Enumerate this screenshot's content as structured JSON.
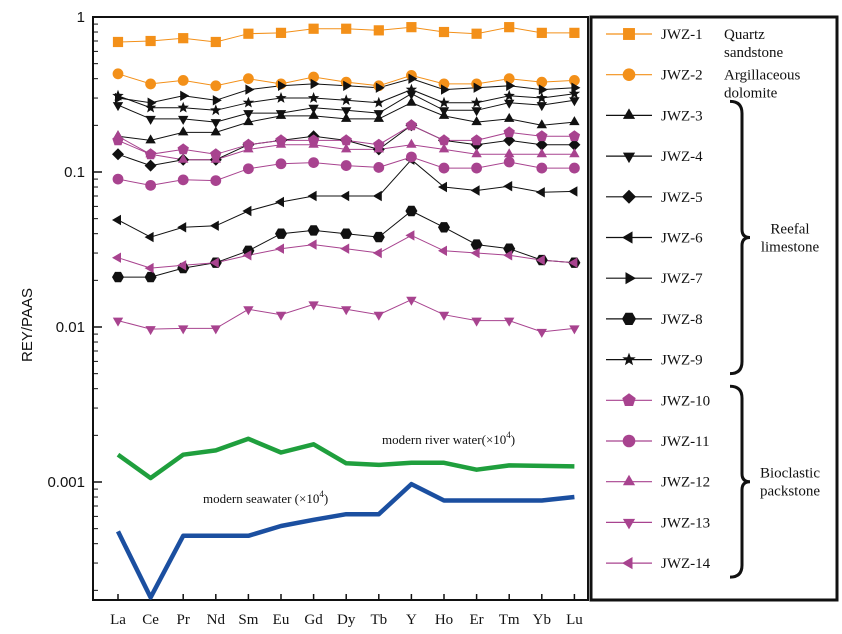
{
  "chart_data": {
    "type": "line",
    "ylabel": "REY/PAAS",
    "yscale": "log",
    "ylim": [
      0.00015,
      1
    ],
    "y_ticks": [
      {
        "value": 1,
        "label": "1"
      },
      {
        "value": 0.1,
        "label": "0.1"
      },
      {
        "value": 0.01,
        "label": "0.01"
      },
      {
        "value": 0.001,
        "label": "0.001"
      }
    ],
    "categories": [
      "La",
      "Ce",
      "Pr",
      "Nd",
      "Sm",
      "Eu",
      "Gd",
      "Dy",
      "Tb",
      "Y",
      "Ho",
      "Er",
      "Tm",
      "Yb",
      "Lu"
    ],
    "series": [
      {
        "name": "JWZ-1",
        "note": "Quartz sandstone",
        "marker": "square",
        "color": "#F39019",
        "line_color": "#F39019",
        "values": [
          0.69,
          0.7,
          0.73,
          0.69,
          0.78,
          0.79,
          0.84,
          0.84,
          0.82,
          0.86,
          0.8,
          0.78,
          0.86,
          0.79,
          0.79
        ]
      },
      {
        "name": "JWZ-2",
        "note": "Argillaceous dolomite",
        "marker": "circle",
        "color": "#F39019",
        "line_color": "#F39019",
        "values": [
          0.43,
          0.37,
          0.39,
          0.36,
          0.4,
          0.37,
          0.41,
          0.38,
          0.36,
          0.42,
          0.37,
          0.37,
          0.4,
          0.38,
          0.39
        ]
      },
      {
        "name": "JWZ-3",
        "marker": "triangle-up",
        "color": "#111111",
        "line_color": "#111111",
        "values": [
          0.17,
          0.16,
          0.18,
          0.18,
          0.21,
          0.23,
          0.23,
          0.22,
          0.22,
          0.28,
          0.23,
          0.21,
          0.22,
          0.2,
          0.21
        ]
      },
      {
        "name": "JWZ-4",
        "marker": "triangle-down",
        "color": "#111111",
        "line_color": "#111111",
        "values": [
          0.27,
          0.22,
          0.22,
          0.21,
          0.24,
          0.24,
          0.26,
          0.25,
          0.24,
          0.32,
          0.25,
          0.25,
          0.28,
          0.27,
          0.29
        ]
      },
      {
        "name": "JWZ-5",
        "marker": "diamond",
        "color": "#111111",
        "line_color": "#111111",
        "values": [
          0.13,
          0.11,
          0.12,
          0.12,
          0.15,
          0.16,
          0.17,
          0.16,
          0.14,
          0.2,
          0.16,
          0.15,
          0.16,
          0.15,
          0.15
        ]
      },
      {
        "name": "JWZ-6",
        "marker": "triangle-left",
        "color": "#111111",
        "line_color": "#111111",
        "values": [
          0.049,
          0.038,
          0.044,
          0.045,
          0.056,
          0.064,
          0.07,
          0.07,
          0.07,
          0.12,
          0.08,
          0.076,
          0.081,
          0.074,
          0.075
        ]
      },
      {
        "name": "JWZ-7",
        "marker": "triangle-right",
        "color": "#111111",
        "line_color": "#111111",
        "values": [
          0.3,
          0.28,
          0.31,
          0.29,
          0.34,
          0.36,
          0.37,
          0.36,
          0.35,
          0.4,
          0.34,
          0.35,
          0.36,
          0.34,
          0.35
        ]
      },
      {
        "name": "JWZ-8",
        "marker": "hexagon",
        "color": "#111111",
        "line_color": "#111111",
        "values": [
          0.021,
          0.021,
          0.024,
          0.026,
          0.031,
          0.04,
          0.042,
          0.04,
          0.038,
          0.056,
          0.044,
          0.034,
          0.032,
          0.027,
          0.026
        ]
      },
      {
        "name": "JWZ-9",
        "marker": "star",
        "color": "#111111",
        "line_color": "#111111",
        "values": [
          0.31,
          0.26,
          0.26,
          0.25,
          0.28,
          0.3,
          0.3,
          0.29,
          0.28,
          0.34,
          0.28,
          0.28,
          0.31,
          0.3,
          0.32
        ]
      },
      {
        "name": "JWZ-10",
        "marker": "pentagon",
        "color": "#A8438F",
        "line_color": "#A8438F",
        "values": [
          0.16,
          0.13,
          0.14,
          0.13,
          0.15,
          0.16,
          0.16,
          0.16,
          0.15,
          0.2,
          0.16,
          0.16,
          0.18,
          0.17,
          0.17
        ]
      },
      {
        "name": "JWZ-11",
        "marker": "circle",
        "color": "#A8438F",
        "line_color": "#A8438F",
        "values": [
          0.09,
          0.082,
          0.089,
          0.088,
          0.105,
          0.113,
          0.115,
          0.11,
          0.107,
          0.125,
          0.106,
          0.106,
          0.116,
          0.106,
          0.106
        ]
      },
      {
        "name": "JWZ-12",
        "marker": "triangle-up",
        "color": "#A8438F",
        "line_color": "#A8438F",
        "values": [
          0.17,
          0.13,
          0.12,
          0.12,
          0.14,
          0.15,
          0.15,
          0.14,
          0.14,
          0.15,
          0.14,
          0.13,
          0.13,
          0.13,
          0.13
        ]
      },
      {
        "name": "JWZ-13",
        "marker": "triangle-down",
        "color": "#A8438F",
        "line_color": "#A8438F",
        "values": [
          0.011,
          0.0097,
          0.0098,
          0.0098,
          0.013,
          0.012,
          0.014,
          0.013,
          0.012,
          0.015,
          0.012,
          0.011,
          0.011,
          0.0093,
          0.0098
        ]
      },
      {
        "name": "JWZ-14",
        "marker": "triangle-left",
        "color": "#A8438F",
        "line_color": "#A8438F",
        "values": [
          0.028,
          0.024,
          0.025,
          0.026,
          0.029,
          0.032,
          0.034,
          0.032,
          0.03,
          0.039,
          0.031,
          0.03,
          0.029,
          0.027,
          0.026
        ]
      }
    ],
    "reference_lines": [
      {
        "name": "modern river water",
        "label": "modern river water(×10",
        "label_sup": "4",
        "label_end": ")",
        "color": "#1F9F3D",
        "values": [
          0.0015,
          0.00106,
          0.0015,
          0.0016,
          0.0019,
          0.00155,
          0.00175,
          0.00132,
          0.00129,
          0.00133,
          0.00133,
          0.0012,
          0.00128,
          0.00127,
          0.00126
        ]
      },
      {
        "name": "modern seawater",
        "label": "modern seawater (×10",
        "label_sup": "4",
        "label_end": ")",
        "color": "#1B4FA0",
        "values": [
          0.00048,
          0.00018,
          0.00045,
          0.00045,
          0.00045,
          0.00052,
          0.00057,
          0.00062,
          0.00062,
          0.00097,
          0.00076,
          0.00076,
          0.00076,
          0.00076,
          0.0008
        ]
      }
    ],
    "legend": {
      "placement": "right",
      "entries": [
        {
          "series": "JWZ-1",
          "label": "JWZ-1",
          "group_label": [
            "Quartz",
            "sandstone"
          ]
        },
        {
          "series": "JWZ-2",
          "label": "JWZ-2",
          "group_label": [
            "Argillaceous",
            "dolomite"
          ]
        },
        {
          "series": "JWZ-3",
          "label": "JWZ-3"
        },
        {
          "series": "JWZ-4",
          "label": "JWZ-4"
        },
        {
          "series": "JWZ-5",
          "label": "JWZ-5"
        },
        {
          "series": "JWZ-6",
          "label": "JWZ-6"
        },
        {
          "series": "JWZ-7",
          "label": "JWZ-7"
        },
        {
          "series": "JWZ-8",
          "label": "JWZ-8"
        },
        {
          "series": "JWZ-9",
          "label": "JWZ-9"
        },
        {
          "series": "JWZ-10",
          "label": "JWZ-10"
        },
        {
          "series": "JWZ-11",
          "label": "JWZ-11"
        },
        {
          "series": "JWZ-12",
          "label": "JWZ-12"
        },
        {
          "series": "JWZ-13",
          "label": "JWZ-13"
        },
        {
          "series": "JWZ-14",
          "label": "JWZ-14"
        }
      ],
      "groups": [
        {
          "label": [
            "Reefal",
            "limestone"
          ],
          "from": "JWZ-3",
          "to": "JWZ-9"
        },
        {
          "label": [
            "Bioclastic",
            "packstone"
          ],
          "from": "JWZ-10",
          "to": "JWZ-14"
        }
      ]
    }
  }
}
